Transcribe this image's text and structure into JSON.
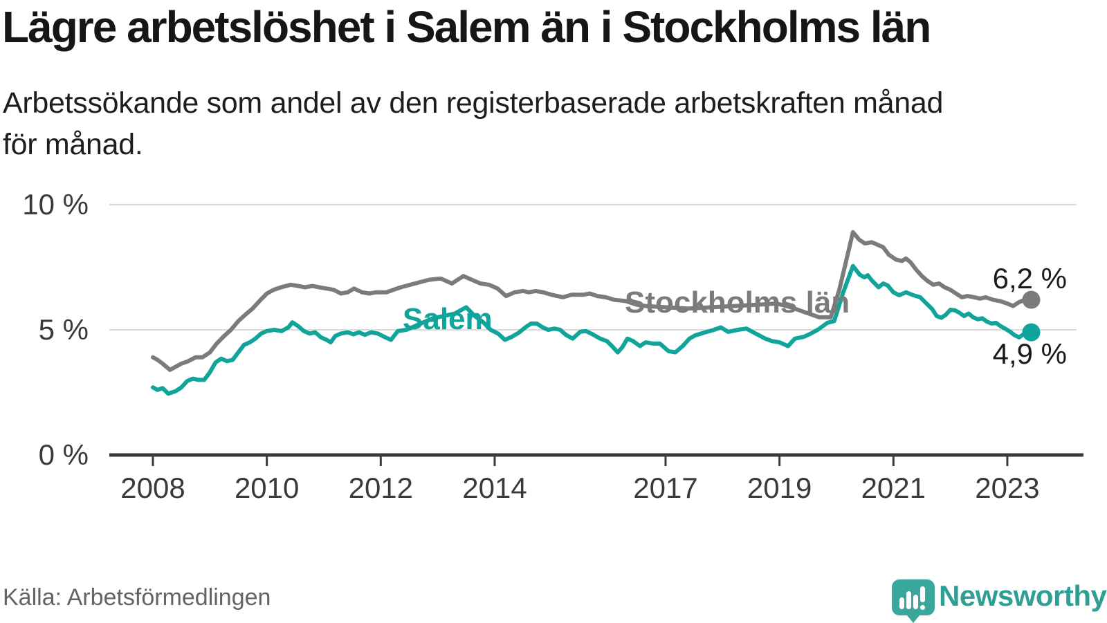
{
  "header": {
    "title": "Lägre arbetslöshet i Salem än i Stockholms län",
    "subtitle_line1": "Arbetssökande som andel av den registerbaserade arbetskraften månad",
    "subtitle_line2": "för månad."
  },
  "footer": {
    "source": "Källa: Arbetsförmedlingen",
    "brand": "Newsworthy"
  },
  "colors": {
    "salem_teal": "#11a49a",
    "stockholm_gray": "#7b7b7b",
    "axis": "#3a3a3a",
    "grid": "#d9d9d9",
    "label_dark": "#1a1a1a",
    "brand_bubble": "#3aa79c",
    "brand_text": "#2d9f95"
  },
  "chart_data": {
    "type": "line",
    "unit": "percent",
    "grid": "horizontal",
    "legend": "inline-labels",
    "ylim": [
      0,
      10
    ],
    "xlim": [
      2007.2,
      2024.3
    ],
    "x_ticks": [
      2008,
      2010,
      2012,
      2014,
      2017,
      2019,
      2021,
      2023
    ],
    "x_tick_labels": [
      "2008",
      "2010",
      "2012",
      "2014",
      "2017",
      "2019",
      "2021",
      "2023"
    ],
    "y_ticks": [
      {
        "value": 0,
        "label": "0 %"
      },
      {
        "value": 5,
        "label": "5 %"
      },
      {
        "value": 10,
        "label": "10 %"
      }
    ],
    "series": [
      {
        "name": "Stockholms län",
        "color": "#7b7b7b",
        "end_label": "6,2 %",
        "end_value": 6.2,
        "points": [
          [
            2008.0,
            3.9
          ],
          [
            2008.08,
            3.8
          ],
          [
            2008.17,
            3.65
          ],
          [
            2008.3,
            3.4
          ],
          [
            2008.42,
            3.55
          ],
          [
            2008.5,
            3.65
          ],
          [
            2008.62,
            3.75
          ],
          [
            2008.75,
            3.9
          ],
          [
            2008.87,
            3.9
          ],
          [
            2009.0,
            4.1
          ],
          [
            2009.12,
            4.45
          ],
          [
            2009.25,
            4.75
          ],
          [
            2009.37,
            5.0
          ],
          [
            2009.5,
            5.35
          ],
          [
            2009.62,
            5.6
          ],
          [
            2009.75,
            5.85
          ],
          [
            2009.87,
            6.15
          ],
          [
            2010.0,
            6.45
          ],
          [
            2010.12,
            6.6
          ],
          [
            2010.25,
            6.7
          ],
          [
            2010.42,
            6.8
          ],
          [
            2010.55,
            6.75
          ],
          [
            2010.67,
            6.7
          ],
          [
            2010.8,
            6.75
          ],
          [
            2010.92,
            6.7
          ],
          [
            2011.05,
            6.65
          ],
          [
            2011.17,
            6.6
          ],
          [
            2011.3,
            6.45
          ],
          [
            2011.42,
            6.5
          ],
          [
            2011.53,
            6.65
          ],
          [
            2011.67,
            6.5
          ],
          [
            2011.8,
            6.45
          ],
          [
            2011.92,
            6.5
          ],
          [
            2012.1,
            6.5
          ],
          [
            2012.35,
            6.7
          ],
          [
            2012.6,
            6.85
          ],
          [
            2012.85,
            7.0
          ],
          [
            2013.05,
            7.05
          ],
          [
            2013.25,
            6.85
          ],
          [
            2013.45,
            7.15
          ],
          [
            2013.6,
            7.0
          ],
          [
            2013.75,
            6.85
          ],
          [
            2013.9,
            6.8
          ],
          [
            2014.05,
            6.65
          ],
          [
            2014.2,
            6.35
          ],
          [
            2014.35,
            6.5
          ],
          [
            2014.5,
            6.55
          ],
          [
            2014.6,
            6.5
          ],
          [
            2014.72,
            6.55
          ],
          [
            2014.85,
            6.5
          ],
          [
            2015.0,
            6.4
          ],
          [
            2015.2,
            6.3
          ],
          [
            2015.35,
            6.4
          ],
          [
            2015.55,
            6.4
          ],
          [
            2015.67,
            6.45
          ],
          [
            2015.8,
            6.35
          ],
          [
            2015.95,
            6.3
          ],
          [
            2016.1,
            6.2
          ],
          [
            2016.3,
            6.15
          ],
          [
            2016.5,
            6.0
          ],
          [
            2016.65,
            5.95
          ],
          [
            2017.0,
            5.9
          ],
          [
            2017.4,
            5.85
          ],
          [
            2017.8,
            5.9
          ],
          [
            2018.2,
            5.95
          ],
          [
            2018.6,
            6.0
          ],
          [
            2018.95,
            6.05
          ],
          [
            2019.2,
            5.9
          ],
          [
            2019.45,
            5.7
          ],
          [
            2019.7,
            5.5
          ],
          [
            2019.9,
            5.5
          ],
          [
            2020.05,
            6.6
          ],
          [
            2020.29,
            8.9
          ],
          [
            2020.4,
            8.6
          ],
          [
            2020.5,
            8.45
          ],
          [
            2020.62,
            8.5
          ],
          [
            2020.72,
            8.4
          ],
          [
            2020.82,
            8.3
          ],
          [
            2020.92,
            8.0
          ],
          [
            2021.05,
            7.8
          ],
          [
            2021.15,
            7.75
          ],
          [
            2021.22,
            7.85
          ],
          [
            2021.3,
            7.7
          ],
          [
            2021.4,
            7.4
          ],
          [
            2021.5,
            7.15
          ],
          [
            2021.6,
            6.95
          ],
          [
            2021.7,
            6.8
          ],
          [
            2021.8,
            6.85
          ],
          [
            2021.9,
            6.7
          ],
          [
            2022.0,
            6.6
          ],
          [
            2022.1,
            6.45
          ],
          [
            2022.2,
            6.3
          ],
          [
            2022.3,
            6.35
          ],
          [
            2022.42,
            6.3
          ],
          [
            2022.52,
            6.25
          ],
          [
            2022.62,
            6.3
          ],
          [
            2022.75,
            6.2
          ],
          [
            2022.87,
            6.15
          ],
          [
            2023.0,
            6.05
          ],
          [
            2023.1,
            5.95
          ],
          [
            2023.2,
            6.1
          ],
          [
            2023.3,
            6.2
          ],
          [
            2023.42,
            6.2
          ]
        ]
      },
      {
        "name": "Salem",
        "color": "#11a49a",
        "end_label": "4,9 %",
        "end_value": 4.9,
        "points": [
          [
            2008.0,
            2.7
          ],
          [
            2008.08,
            2.6
          ],
          [
            2008.17,
            2.67
          ],
          [
            2008.27,
            2.45
          ],
          [
            2008.4,
            2.55
          ],
          [
            2008.5,
            2.7
          ],
          [
            2008.6,
            2.95
          ],
          [
            2008.7,
            3.05
          ],
          [
            2008.8,
            3.0
          ],
          [
            2008.9,
            3.0
          ],
          [
            2009.0,
            3.3
          ],
          [
            2009.1,
            3.7
          ],
          [
            2009.2,
            3.85
          ],
          [
            2009.3,
            3.75
          ],
          [
            2009.4,
            3.8
          ],
          [
            2009.5,
            4.1
          ],
          [
            2009.6,
            4.4
          ],
          [
            2009.7,
            4.5
          ],
          [
            2009.8,
            4.65
          ],
          [
            2009.9,
            4.85
          ],
          [
            2010.0,
            4.95
          ],
          [
            2010.13,
            5.0
          ],
          [
            2010.26,
            4.95
          ],
          [
            2010.38,
            5.1
          ],
          [
            2010.45,
            5.3
          ],
          [
            2010.55,
            5.15
          ],
          [
            2010.65,
            4.95
          ],
          [
            2010.75,
            4.85
          ],
          [
            2010.85,
            4.9
          ],
          [
            2010.95,
            4.7
          ],
          [
            2011.05,
            4.6
          ],
          [
            2011.12,
            4.5
          ],
          [
            2011.2,
            4.75
          ],
          [
            2011.3,
            4.85
          ],
          [
            2011.42,
            4.9
          ],
          [
            2011.52,
            4.82
          ],
          [
            2011.62,
            4.9
          ],
          [
            2011.72,
            4.8
          ],
          [
            2011.83,
            4.9
          ],
          [
            2011.95,
            4.85
          ],
          [
            2012.08,
            4.7
          ],
          [
            2012.18,
            4.6
          ],
          [
            2012.3,
            4.95
          ],
          [
            2012.45,
            5.0
          ],
          [
            2012.6,
            5.15
          ],
          [
            2012.75,
            5.3
          ],
          [
            2012.9,
            5.45
          ],
          [
            2013.1,
            5.55
          ],
          [
            2013.3,
            5.65
          ],
          [
            2013.5,
            5.9
          ],
          [
            2013.65,
            5.55
          ],
          [
            2013.8,
            5.3
          ],
          [
            2013.93,
            5.0
          ],
          [
            2014.06,
            4.85
          ],
          [
            2014.18,
            4.6
          ],
          [
            2014.3,
            4.72
          ],
          [
            2014.42,
            4.88
          ],
          [
            2014.54,
            5.1
          ],
          [
            2014.64,
            5.25
          ],
          [
            2014.74,
            5.25
          ],
          [
            2014.84,
            5.1
          ],
          [
            2014.94,
            5.0
          ],
          [
            2015.05,
            5.05
          ],
          [
            2015.15,
            5.0
          ],
          [
            2015.25,
            4.8
          ],
          [
            2015.37,
            4.65
          ],
          [
            2015.5,
            4.92
          ],
          [
            2015.6,
            4.95
          ],
          [
            2015.72,
            4.82
          ],
          [
            2015.85,
            4.65
          ],
          [
            2015.97,
            4.55
          ],
          [
            2016.08,
            4.3
          ],
          [
            2016.16,
            4.1
          ],
          [
            2016.24,
            4.3
          ],
          [
            2016.33,
            4.65
          ],
          [
            2016.43,
            4.55
          ],
          [
            2016.55,
            4.35
          ],
          [
            2016.65,
            4.5
          ],
          [
            2016.78,
            4.45
          ],
          [
            2016.9,
            4.45
          ],
          [
            2017.05,
            4.15
          ],
          [
            2017.17,
            4.1
          ],
          [
            2017.3,
            4.35
          ],
          [
            2017.42,
            4.65
          ],
          [
            2017.52,
            4.78
          ],
          [
            2017.67,
            4.88
          ],
          [
            2017.85,
            5.0
          ],
          [
            2017.97,
            5.1
          ],
          [
            2018.1,
            4.92
          ],
          [
            2018.27,
            5.0
          ],
          [
            2018.42,
            5.05
          ],
          [
            2018.58,
            4.85
          ],
          [
            2018.75,
            4.65
          ],
          [
            2018.87,
            4.55
          ],
          [
            2019.0,
            4.5
          ],
          [
            2019.15,
            4.35
          ],
          [
            2019.27,
            4.65
          ],
          [
            2019.43,
            4.72
          ],
          [
            2019.55,
            4.85
          ],
          [
            2019.67,
            5.0
          ],
          [
            2019.84,
            5.28
          ],
          [
            2019.96,
            5.35
          ],
          [
            2020.12,
            6.5
          ],
          [
            2020.29,
            7.55
          ],
          [
            2020.41,
            7.2
          ],
          [
            2020.49,
            7.1
          ],
          [
            2020.55,
            7.18
          ],
          [
            2020.63,
            6.95
          ],
          [
            2020.74,
            6.7
          ],
          [
            2020.82,
            6.85
          ],
          [
            2020.9,
            6.77
          ],
          [
            2021.0,
            6.5
          ],
          [
            2021.1,
            6.38
          ],
          [
            2021.22,
            6.5
          ],
          [
            2021.35,
            6.38
          ],
          [
            2021.47,
            6.3
          ],
          [
            2021.56,
            6.1
          ],
          [
            2021.68,
            5.83
          ],
          [
            2021.76,
            5.55
          ],
          [
            2021.84,
            5.48
          ],
          [
            2021.92,
            5.6
          ],
          [
            2022.0,
            5.8
          ],
          [
            2022.08,
            5.78
          ],
          [
            2022.16,
            5.68
          ],
          [
            2022.24,
            5.55
          ],
          [
            2022.32,
            5.65
          ],
          [
            2022.4,
            5.5
          ],
          [
            2022.48,
            5.42
          ],
          [
            2022.56,
            5.46
          ],
          [
            2022.64,
            5.33
          ],
          [
            2022.72,
            5.25
          ],
          [
            2022.8,
            5.28
          ],
          [
            2022.88,
            5.15
          ],
          [
            2022.96,
            5.05
          ],
          [
            2023.05,
            4.92
          ],
          [
            2023.13,
            4.78
          ],
          [
            2023.21,
            4.7
          ],
          [
            2023.3,
            4.85
          ],
          [
            2023.36,
            5.0
          ],
          [
            2023.42,
            4.9
          ]
        ]
      }
    ]
  }
}
